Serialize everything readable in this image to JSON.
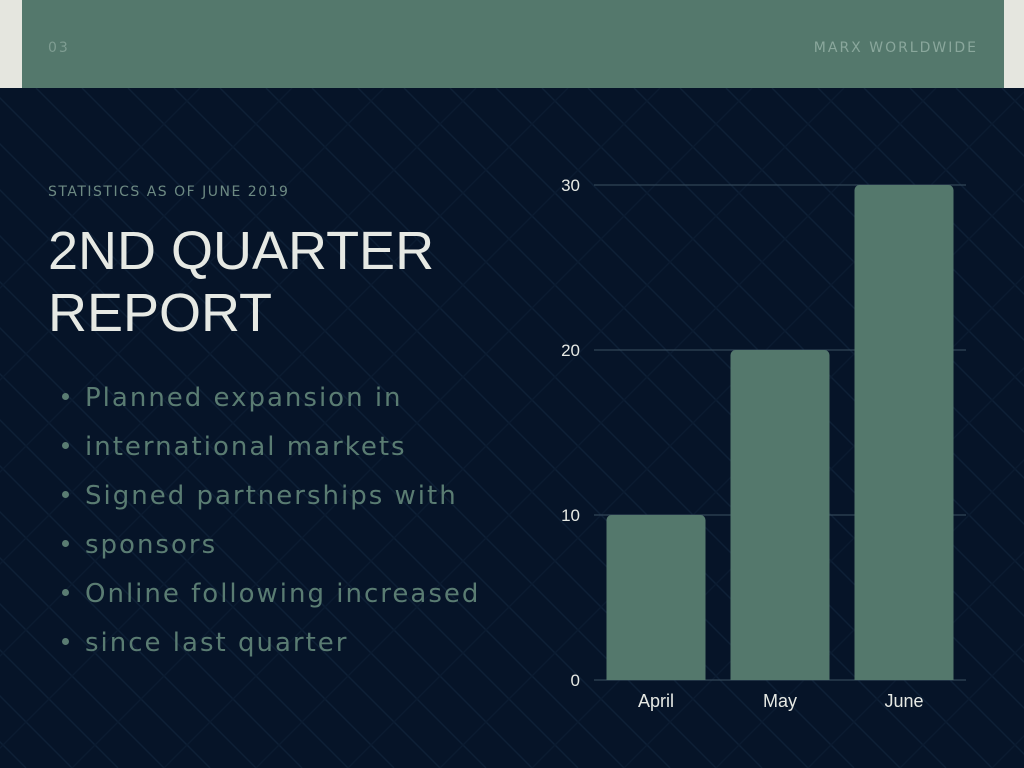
{
  "header": {
    "page_number": "03",
    "brand": "MARX WORLDWIDE"
  },
  "slide": {
    "subtitle": "STATISTICS AS OF JUNE 2019",
    "title_line1": "2ND QUARTER",
    "title_line2": "REPORT",
    "bullets": [
      "Planned expansion in",
      "international markets",
      "Signed partnerships with",
      "sponsors",
      "Online following increased",
      "since last quarter"
    ]
  },
  "colors": {
    "background": "#061428",
    "accent": "#54786c",
    "edge": "#e5e6df",
    "title": "#e6e9e4",
    "bullet_text": "#5a7c72",
    "bar": "#54786c"
  },
  "chart_data": {
    "type": "bar",
    "categories": [
      "April",
      "May",
      "June"
    ],
    "values": [
      10,
      20,
      30
    ],
    "title": "",
    "xlabel": "",
    "ylabel": "",
    "ylim": [
      0,
      30
    ],
    "yticks": [
      0,
      10,
      20,
      30
    ],
    "grid": true,
    "legend": "none"
  }
}
